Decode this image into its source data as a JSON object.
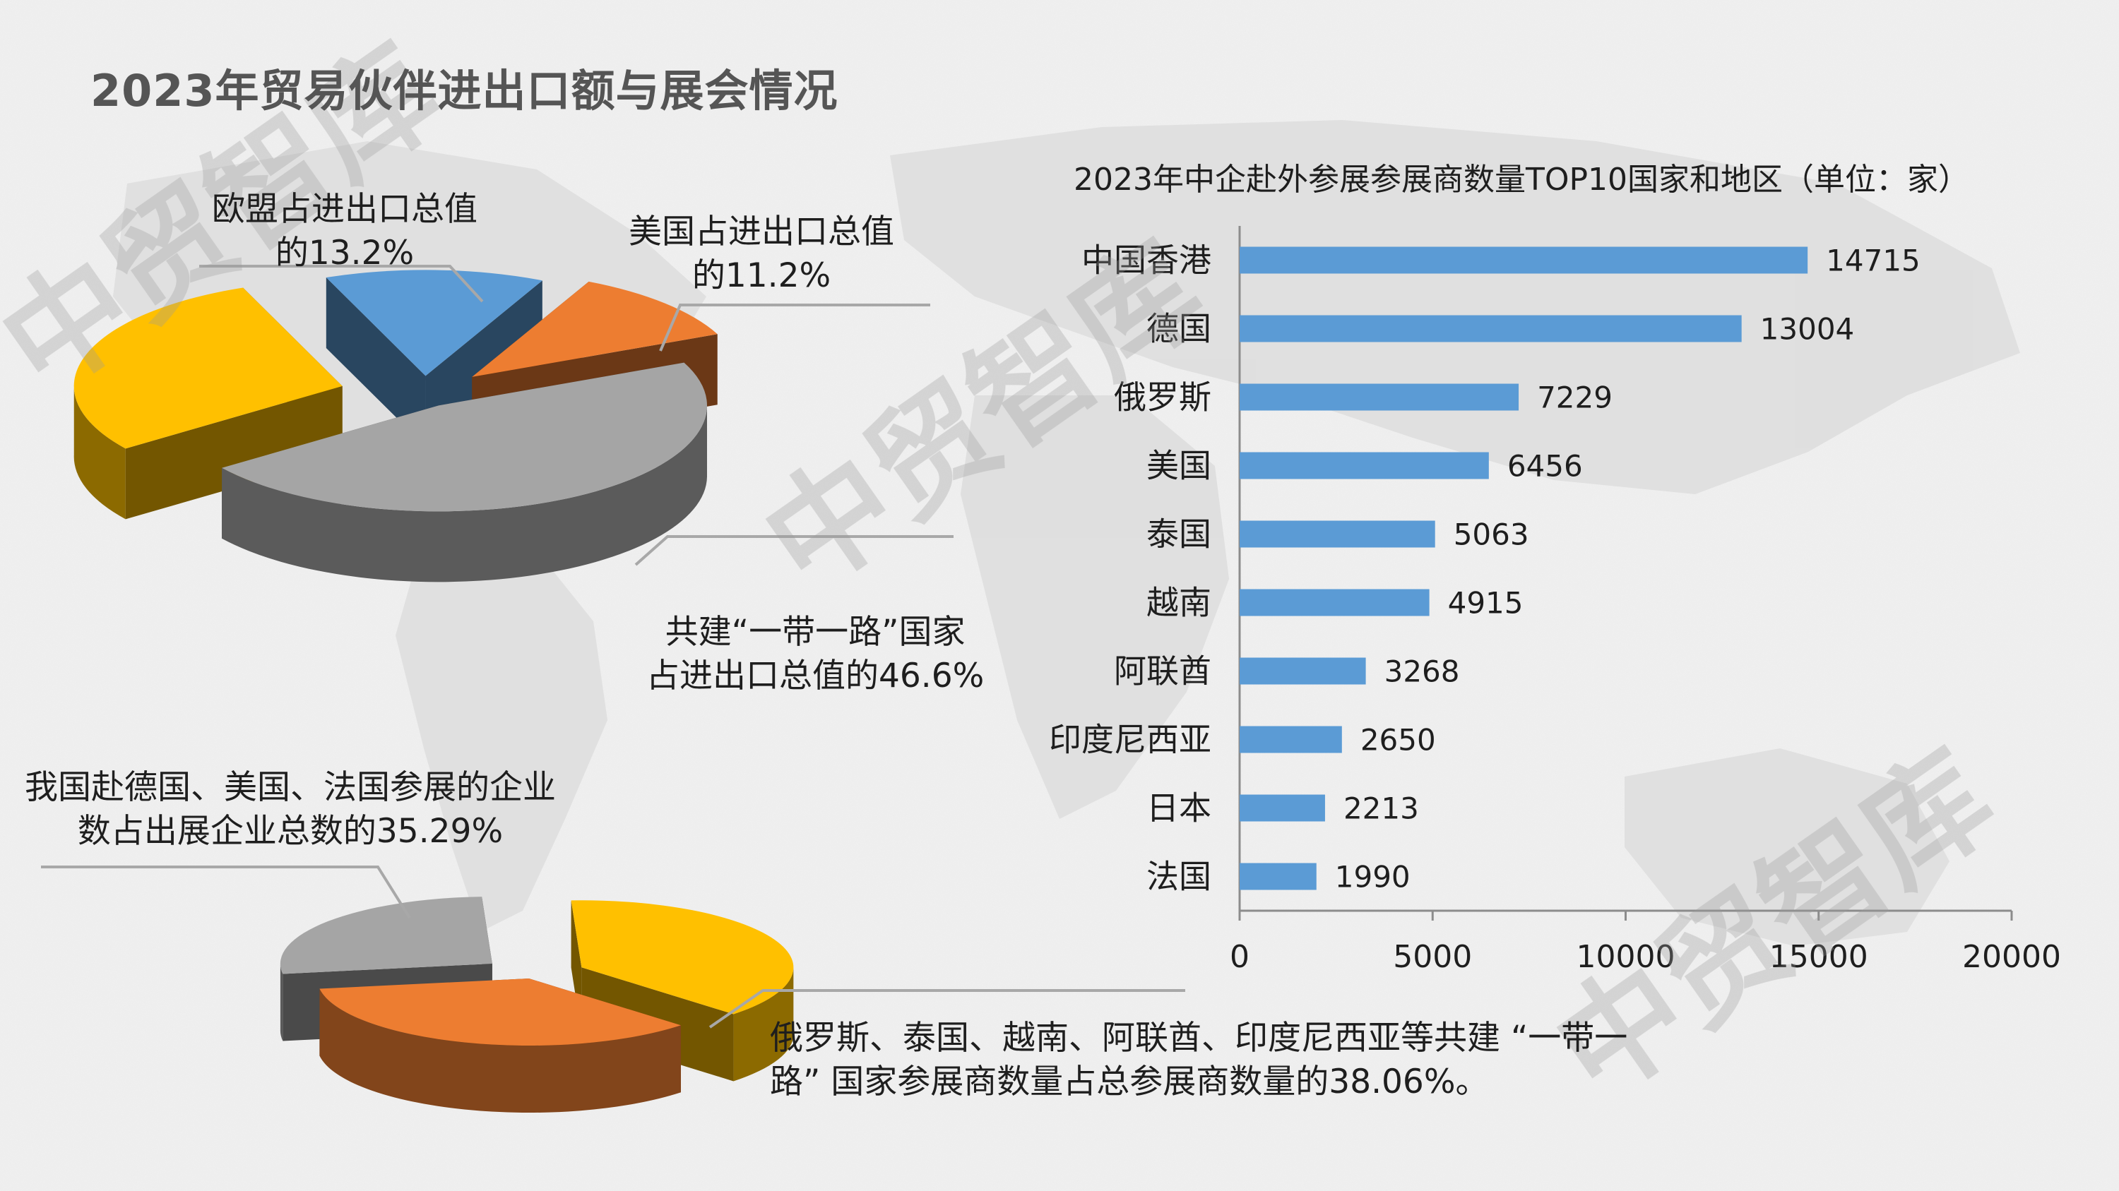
{
  "page": {
    "title": "2023年贸易伙伴进出口额与展会情况",
    "watermark": "中贸智库"
  },
  "labels": {
    "eu": [
      "欧盟占进出口总值",
      "的13.2%"
    ],
    "us": [
      "美国占进出口总值",
      "的11.2%"
    ],
    "belt_road_trade": [
      "共建“一带一路”国家",
      "占进出口总值的46.6%"
    ],
    "de_us_fr_firms": [
      "我国赴德国、美国、法国参展的企业",
      "数占出展企业总数的35.29%"
    ],
    "belt_road_exhibitors": [
      "俄罗斯、泰国、越南、阿联酋、印度尼西亚等共建 “一带一",
      "路” 国家参展商数量占总参展商数量的38.06%。"
    ]
  },
  "colors": {
    "gold": "#FFC000",
    "blue": "#5B9BD5",
    "orange": "#ED7D31",
    "gray": "#A5A5A5",
    "text": "#1e1e1e",
    "title": "#555555"
  },
  "chart_data": [
    {
      "type": "pie",
      "title": "",
      "slices": [
        {
          "label": "欧盟",
          "value": 13.2,
          "color": "#5B9BD5"
        },
        {
          "label": "美国",
          "value": 11.2,
          "color": "#ED7D31"
        },
        {
          "label": "共建“一带一路”国家",
          "value": 46.6,
          "color": "#A5A5A5"
        },
        {
          "label": "",
          "value": 29.0,
          "color": "#FFC000"
        }
      ]
    },
    {
      "type": "pie",
      "title": "",
      "slices": [
        {
          "label": "共建“一带一路”国家",
          "value": 38.06,
          "color": "#FFC000"
        },
        {
          "label": "德国、美国、法国",
          "value": 35.29,
          "color": "#ED7D31"
        },
        {
          "label": "",
          "value": 26.65,
          "color": "#A5A5A5"
        }
      ]
    },
    {
      "type": "bar",
      "orientation": "horizontal",
      "title": "2023年中企赴外参展参展商数量TOP10国家和地区（单位：家）",
      "categories": [
        "中国香港",
        "德国",
        "俄罗斯",
        "美国",
        "泰国",
        "越南",
        "阿联酋",
        "印度尼西亚",
        "日本",
        "法国"
      ],
      "values": [
        14715,
        13004,
        7229,
        6456,
        5063,
        4915,
        3268,
        2650,
        2213,
        1990
      ],
      "xlim": [
        0,
        20000
      ],
      "xticks": [
        "0",
        "5000",
        "10000",
        "15000",
        "20000"
      ],
      "color": "#5B9BD5",
      "grid": false
    }
  ]
}
